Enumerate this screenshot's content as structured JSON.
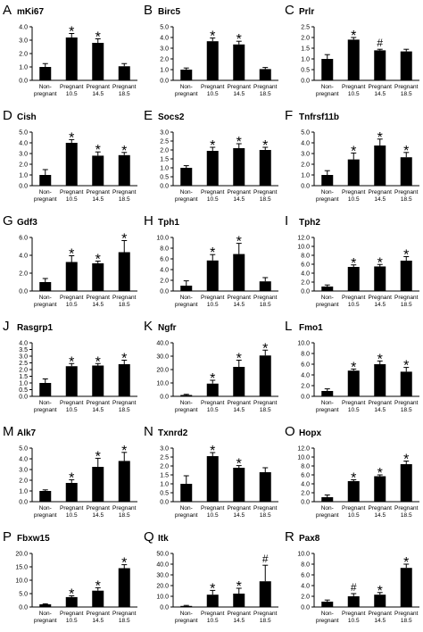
{
  "chart_data": [
    {
      "type": "bar",
      "letter": "A",
      "title": "mKi67",
      "categories": [
        "Non-\npregnant",
        "Pregnant\n10.5",
        "Pregnant\n14.5",
        "Pregnant\n18.5"
      ],
      "values": [
        1.0,
        3.2,
        2.8,
        1.05
      ],
      "errors": [
        0.25,
        0.3,
        0.3,
        0.2
      ],
      "marks": [
        "",
        "*",
        "*",
        ""
      ],
      "ylim": [
        0,
        4
      ],
      "yticks": [
        "0.0",
        "1.0",
        "2.0",
        "3.0",
        "4.0"
      ]
    },
    {
      "type": "bar",
      "letter": "B",
      "title": "Birc5",
      "categories": [
        "Non-\npregnant",
        "Pregnant\n10.5",
        "Pregnant\n14.5",
        "Pregnant\n18.5"
      ],
      "values": [
        1.0,
        3.65,
        3.35,
        1.05
      ],
      "errors": [
        0.15,
        0.3,
        0.3,
        0.15
      ],
      "marks": [
        "",
        "*",
        "*",
        ""
      ],
      "ylim": [
        0,
        5
      ],
      "yticks": [
        "0.0",
        "1.0",
        "2.0",
        "3.0",
        "4.0",
        "5.0"
      ]
    },
    {
      "type": "bar",
      "letter": "C",
      "title": "Prlr",
      "categories": [
        "Non-\npregnant",
        "Pregnant\n10.5",
        "Pregnant\n14.5",
        "Pregnant\n18.5"
      ],
      "values": [
        1.0,
        1.9,
        1.4,
        1.35
      ],
      "errors": [
        0.2,
        0.1,
        0.05,
        0.1
      ],
      "marks": [
        "",
        "*",
        "#",
        ""
      ],
      "ylim": [
        0,
        2.5
      ],
      "yticks": [
        "0.0",
        "0.5",
        "1.0",
        "1.5",
        "2.0",
        "2.5"
      ]
    },
    {
      "type": "bar",
      "letter": "D",
      "title": "Cish",
      "categories": [
        "Non-\npregnant",
        "Pregnant\n10.5",
        "Pregnant\n14.5",
        "Pregnant\n18.5"
      ],
      "values": [
        1.0,
        4.0,
        2.8,
        2.85
      ],
      "errors": [
        0.5,
        0.3,
        0.35,
        0.25
      ],
      "marks": [
        "",
        "*",
        "*",
        "*"
      ],
      "ylim": [
        0,
        5
      ],
      "yticks": [
        "0.0",
        "1.0",
        "2.0",
        "3.0",
        "4.0",
        "5.0"
      ]
    },
    {
      "type": "bar",
      "letter": "E",
      "title": "Socs2",
      "categories": [
        "Non-\npregnant",
        "Pregnant\n10.5",
        "Pregnant\n14.5",
        "Pregnant\n18.5"
      ],
      "values": [
        1.0,
        1.95,
        2.1,
        2.0
      ],
      "errors": [
        0.12,
        0.2,
        0.25,
        0.15
      ],
      "marks": [
        "",
        "*",
        "*",
        "*"
      ],
      "ylim": [
        0,
        3
      ],
      "yticks": [
        "0.0",
        "0.5",
        "1.0",
        "1.5",
        "2.0",
        "2.5",
        "3.0"
      ]
    },
    {
      "type": "bar",
      "letter": "F",
      "title": "Tnfrsf11b",
      "categories": [
        "Non-\npregnant",
        "Pregnant\n10.5",
        "Pregnant\n14.5",
        "Pregnant\n18.5"
      ],
      "values": [
        1.0,
        2.45,
        3.75,
        2.65
      ],
      "errors": [
        0.4,
        0.6,
        0.6,
        0.45
      ],
      "marks": [
        "",
        "*",
        "*",
        "*"
      ],
      "ylim": [
        0,
        5
      ],
      "yticks": [
        "0.0",
        "1.0",
        "2.0",
        "3.0",
        "4.0",
        "5.0"
      ]
    },
    {
      "type": "bar",
      "letter": "G",
      "title": "Gdf3",
      "categories": [
        "Non-\npregnant",
        "Pregnant\n10.5",
        "Pregnant\n14.5",
        "Pregnant\n18.5"
      ],
      "values": [
        1.0,
        3.25,
        3.1,
        4.35
      ],
      "errors": [
        0.4,
        0.7,
        0.25,
        1.3
      ],
      "marks": [
        "",
        "*",
        "*",
        "*"
      ],
      "ylim": [
        0,
        6
      ],
      "yticks": [
        "0.0",
        "2.0",
        "4.0",
        "6.0"
      ]
    },
    {
      "type": "bar",
      "letter": "H",
      "title": "Tph1",
      "categories": [
        "Non-\npregnant",
        "Pregnant\n10.5",
        "Pregnant\n14.5",
        "Pregnant\n18.5"
      ],
      "values": [
        1.0,
        5.7,
        6.9,
        1.8
      ],
      "errors": [
        0.9,
        1.1,
        2.0,
        0.7
      ],
      "marks": [
        "",
        "*",
        "*",
        ""
      ],
      "ylim": [
        0,
        10
      ],
      "yticks": [
        "0.0",
        "2.0",
        "4.0",
        "6.0",
        "8.0",
        "10.0"
      ]
    },
    {
      "type": "bar",
      "letter": "I",
      "title": "Tph2",
      "categories": [
        "Non-\npregnant",
        "Pregnant\n10.5",
        "Pregnant\n14.5",
        "Pregnant\n18.5"
      ],
      "values": [
        1.0,
        5.4,
        5.5,
        6.8
      ],
      "errors": [
        0.35,
        0.45,
        0.45,
        0.9
      ],
      "marks": [
        "",
        "*",
        "*",
        "*"
      ],
      "ylim": [
        0,
        12
      ],
      "yticks": [
        "0.0",
        "2.0",
        "4.0",
        "6.0",
        "8.0",
        "10.0",
        "12.0"
      ]
    },
    {
      "type": "bar",
      "letter": "J",
      "title": "Rasgrp1",
      "categories": [
        "Non-\npregnant",
        "Pregnant\n10.5",
        "Pregnant\n14.5",
        "Pregnant\n18.5"
      ],
      "values": [
        1.0,
        2.25,
        2.3,
        2.4
      ],
      "errors": [
        0.3,
        0.2,
        0.15,
        0.3
      ],
      "marks": [
        "",
        "*",
        "*",
        "*"
      ],
      "ylim": [
        0,
        4
      ],
      "yticks": [
        "0.0",
        "0.5",
        "1.0",
        "1.5",
        "2.0",
        "2.5",
        "3.0",
        "3.5",
        "4.0"
      ]
    },
    {
      "type": "bar",
      "letter": "K",
      "title": "Ngfr",
      "categories": [
        "Non-\npregnant",
        "Pregnant\n10.5",
        "Pregnant\n14.5",
        "Pregnant\n18.5"
      ],
      "values": [
        1.0,
        9.5,
        22,
        30.5
      ],
      "errors": [
        0.5,
        2.5,
        5,
        4
      ],
      "marks": [
        "",
        "*",
        "*",
        "*"
      ],
      "ylim": [
        0,
        40
      ],
      "yticks": [
        "0.0",
        "10.0",
        "20.0",
        "30.0",
        "40.0"
      ]
    },
    {
      "type": "bar",
      "letter": "L",
      "title": "Fmo1",
      "categories": [
        "Non-\npregnant",
        "Pregnant\n10.5",
        "Pregnant\n14.5",
        "Pregnant\n18.5"
      ],
      "values": [
        1.0,
        4.8,
        6.0,
        4.6
      ],
      "errors": [
        0.4,
        0.3,
        0.6,
        0.8
      ],
      "marks": [
        "",
        "*",
        "*",
        "*"
      ],
      "ylim": [
        0,
        10
      ],
      "yticks": [
        "0.0",
        "2.0",
        "4.0",
        "6.0",
        "8.0",
        "10.0"
      ]
    },
    {
      "type": "bar",
      "letter": "M",
      "title": "Alk7",
      "categories": [
        "Non-\npregnant",
        "Pregnant\n10.5",
        "Pregnant\n14.5",
        "Pregnant\n18.5"
      ],
      "values": [
        1.0,
        1.75,
        3.25,
        3.8
      ],
      "errors": [
        0.1,
        0.3,
        0.8,
        0.8
      ],
      "marks": [
        "",
        "*",
        "*",
        "*"
      ],
      "ylim": [
        0,
        5
      ],
      "yticks": [
        "0.0",
        "1.0",
        "2.0",
        "3.0",
        "4.0",
        "5.0"
      ]
    },
    {
      "type": "bar",
      "letter": "N",
      "title": "Txnrd2",
      "categories": [
        "Non-\npregnant",
        "Pregnant\n10.5",
        "Pregnant\n14.5",
        "Pregnant\n18.5"
      ],
      "values": [
        1.0,
        2.55,
        1.9,
        1.65
      ],
      "errors": [
        0.45,
        0.2,
        0.12,
        0.25
      ],
      "marks": [
        "",
        "*",
        "*",
        ""
      ],
      "ylim": [
        0,
        3
      ],
      "yticks": [
        "0.0",
        "0.5",
        "1.0",
        "1.5",
        "2.0",
        "2.5",
        "3.0"
      ]
    },
    {
      "type": "bar",
      "letter": "O",
      "title": "Hopx",
      "categories": [
        "Non-\npregnant",
        "Pregnant\n10.5",
        "Pregnant\n14.5",
        "Pregnant\n18.5"
      ],
      "values": [
        1.0,
        4.6,
        5.7,
        8.4
      ],
      "errors": [
        0.5,
        0.3,
        0.3,
        0.7
      ],
      "marks": [
        "",
        "*",
        "*",
        "*"
      ],
      "ylim": [
        0,
        12
      ],
      "yticks": [
        "0.0",
        "2.0",
        "4.0",
        "6.0",
        "8.0",
        "10.0",
        "12.0"
      ]
    },
    {
      "type": "bar",
      "letter": "P",
      "title": "Fbxw15",
      "categories": [
        "Non-\npregnant",
        "Pregnant\n10.5",
        "Pregnant\n14.5",
        "Pregnant\n18.5"
      ],
      "values": [
        1.0,
        3.7,
        6.1,
        14.5
      ],
      "errors": [
        0.2,
        0.5,
        1.1,
        1.3
      ],
      "marks": [
        "",
        "*",
        "*",
        "*"
      ],
      "ylim": [
        0,
        20
      ],
      "yticks": [
        "0.0",
        "5.0",
        "10.0",
        "15.0",
        "20.0"
      ]
    },
    {
      "type": "bar",
      "letter": "Q",
      "title": "Itk",
      "categories": [
        "Non-\npregnant",
        "Pregnant\n10.5",
        "Pregnant\n14.5",
        "Pregnant\n18.5"
      ],
      "values": [
        1.0,
        11.5,
        12.5,
        24
      ],
      "errors": [
        0.5,
        4,
        5,
        15
      ],
      "marks": [
        "",
        "*",
        "*",
        "#"
      ],
      "ylim": [
        0,
        50
      ],
      "yticks": [
        "0.0",
        "10.0",
        "20.0",
        "30.0",
        "40.0",
        "50.0"
      ]
    },
    {
      "type": "bar",
      "letter": "R",
      "title": "Pax8",
      "categories": [
        "Non-\npregnant",
        "Pregnant\n10.5",
        "Pregnant\n14.5",
        "Pregnant\n18.5"
      ],
      "values": [
        1.0,
        2.0,
        2.3,
        7.3
      ],
      "errors": [
        0.3,
        0.5,
        0.4,
        0.7
      ],
      "marks": [
        "",
        "#",
        "*",
        "*"
      ],
      "ylim": [
        0,
        10
      ],
      "yticks": [
        "0.0",
        "2.0",
        "4.0",
        "6.0",
        "8.0",
        "10.0"
      ]
    }
  ]
}
